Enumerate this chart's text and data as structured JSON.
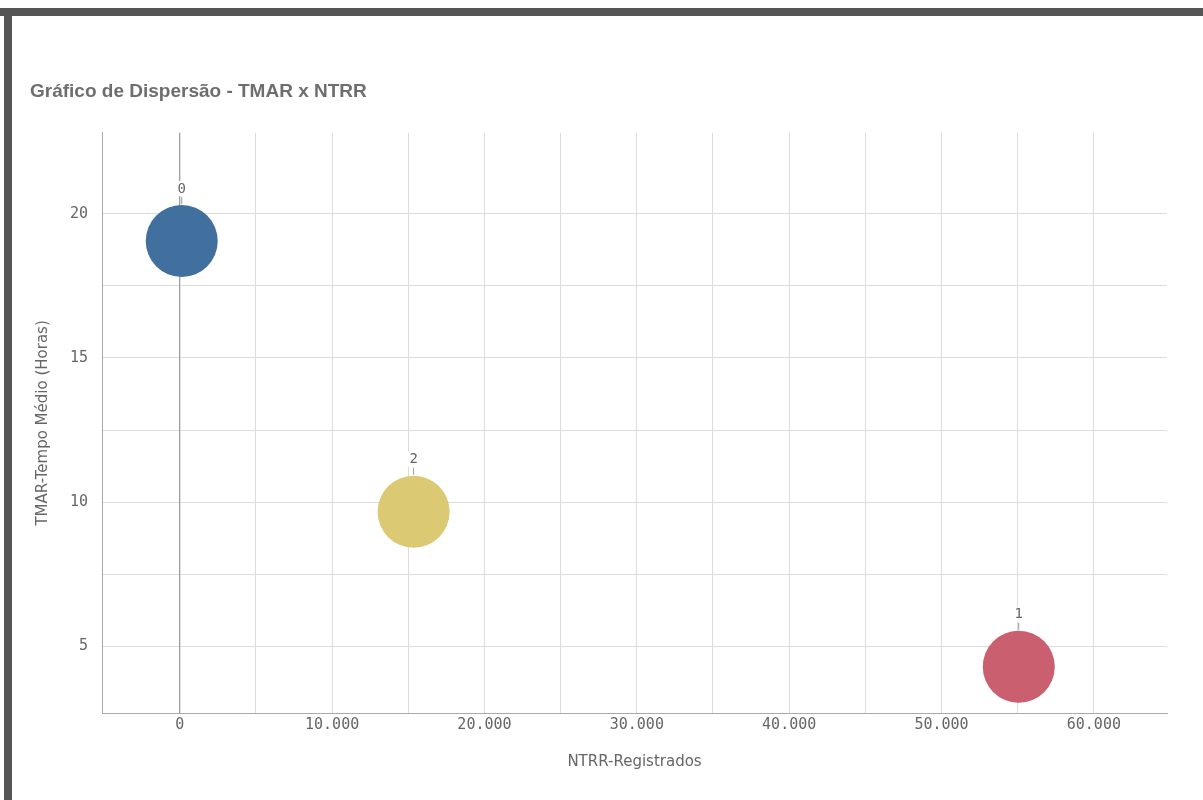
{
  "chart_data": {
    "type": "scatter",
    "title": "Gráfico de Dispersão - TMAR x NTRR",
    "xlabel": "NTRR-Registrados",
    "ylabel": "TMAR-Tempo Médio (Horas)",
    "series": [
      {
        "name": "0",
        "color": "#41709f",
        "x": [
          130
        ],
        "values": [
          19.05
        ]
      },
      {
        "name": "2",
        "color": "#dbc973",
        "x": [
          15350
        ],
        "values": [
          9.67
        ]
      },
      {
        "name": "1",
        "color": "#c95f6f",
        "x": [
          55070
        ],
        "values": [
          4.3
        ]
      }
    ],
    "marker": "circle",
    "xlim": [
      -5100,
      64800
    ],
    "xticks": [
      0,
      {
        "value": 5000,
        "label": null
      },
      {
        "value": 10000,
        "label": "10.000"
      },
      {
        "value": 15000,
        "label": null
      },
      {
        "value": 20000,
        "label": "20.000"
      },
      {
        "value": 25000,
        "label": null
      },
      {
        "value": 30000,
        "label": "30.000"
      },
      {
        "value": 35000,
        "label": null
      },
      {
        "value": 40000,
        "label": "40.000"
      },
      {
        "value": 45000,
        "label": null
      },
      {
        "value": 50000,
        "label": "50.000"
      },
      {
        "value": 55000,
        "label": null
      },
      {
        "value": 60000,
        "label": "60.000"
      }
    ],
    "ylim": [
      2.7,
      22.8
    ],
    "yticks": [
      5,
      {
        "value": 7.5,
        "label": null
      },
      10,
      {
        "value": 12.5,
        "label": null
      },
      15,
      {
        "value": 17.5,
        "label": null
      },
      20
    ],
    "ref_lines": [
      {
        "axis": "x",
        "value": 0,
        "color": "#8a8a8a"
      }
    ],
    "grid": true,
    "legend": false
  }
}
